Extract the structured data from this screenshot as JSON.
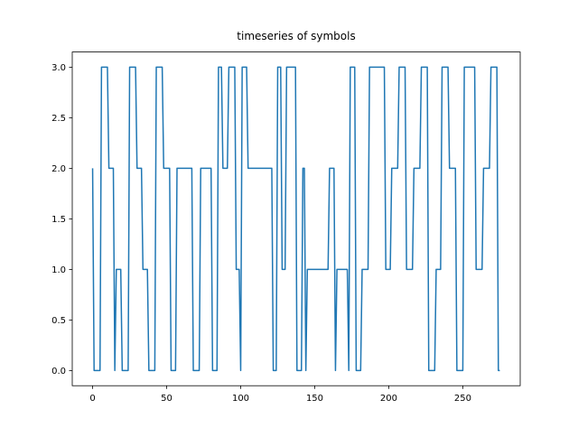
{
  "chart_data": {
    "type": "line",
    "title": "timeseries of symbols",
    "series": [
      {
        "color": "#1f77b4",
        "values": [
          2,
          0,
          0,
          0,
          0,
          0,
          3,
          3,
          3,
          3,
          3,
          2,
          2,
          2,
          2,
          0,
          1,
          1,
          1,
          1,
          0,
          0,
          0,
          0,
          0,
          3,
          3,
          3,
          3,
          3,
          2,
          2,
          2,
          2,
          1,
          1,
          1,
          1,
          0,
          0,
          0,
          0,
          0,
          3,
          3,
          3,
          3,
          3,
          2,
          2,
          2,
          2,
          2,
          0,
          0,
          0,
          0,
          2,
          2,
          2,
          2,
          2,
          2,
          2,
          2,
          2,
          2,
          2,
          0,
          0,
          0,
          0,
          0,
          2,
          2,
          2,
          2,
          2,
          2,
          2,
          2,
          0,
          0,
          0,
          0,
          3,
          3,
          3,
          2,
          2,
          2,
          2,
          3,
          3,
          3,
          3,
          3,
          1,
          1,
          1,
          0,
          3,
          3,
          3,
          3,
          2,
          2,
          2,
          2,
          2,
          2,
          2,
          2,
          2,
          2,
          2,
          2,
          2,
          2,
          2,
          2,
          2,
          0,
          0,
          0,
          3,
          3,
          3,
          1,
          1,
          1,
          3,
          3,
          3,
          3,
          3,
          3,
          3,
          0,
          0,
          0,
          0,
          2,
          2,
          0,
          1,
          1,
          1,
          1,
          1,
          1,
          1,
          1,
          1,
          1,
          1,
          1,
          1,
          1,
          1,
          2,
          2,
          2,
          2,
          0,
          1,
          1,
          1,
          1,
          1,
          1,
          1,
          1,
          0,
          3,
          3,
          3,
          3,
          0,
          0,
          0,
          0,
          1,
          1,
          1,
          1,
          1,
          3,
          3,
          3,
          3,
          3,
          3,
          3,
          3,
          3,
          3,
          3,
          1,
          1,
          1,
          1,
          2,
          2,
          2,
          2,
          2,
          3,
          3,
          3,
          3,
          3,
          1,
          1,
          1,
          1,
          1,
          2,
          2,
          2,
          2,
          2,
          3,
          3,
          3,
          3,
          3,
          0,
          0,
          0,
          0,
          0,
          1,
          1,
          1,
          1,
          3,
          3,
          3,
          3,
          3,
          2,
          2,
          2,
          2,
          2,
          0,
          0,
          0,
          0,
          0,
          3,
          3,
          3,
          3,
          3,
          3,
          3,
          3,
          1,
          1,
          1,
          1,
          1,
          2,
          2,
          2,
          2,
          2,
          3,
          3,
          3,
          3,
          3,
          0,
          0
        ]
      }
    ],
    "xlim": [
      -13.75,
      288.75
    ],
    "xticks": [
      0,
      50,
      100,
      150,
      200,
      250
    ],
    "ylim": [
      -0.15,
      3.15
    ],
    "yticks": [
      {
        "value": 0,
        "label": "0.0"
      },
      {
        "value": 0.5,
        "label": "0.5"
      },
      {
        "value": 1,
        "label": "1.0"
      },
      {
        "value": 1.5,
        "label": "1.5"
      },
      {
        "value": 2,
        "label": "2.0"
      },
      {
        "value": 2.5,
        "label": "2.5"
      },
      {
        "value": 3,
        "label": "3.0"
      }
    ]
  }
}
